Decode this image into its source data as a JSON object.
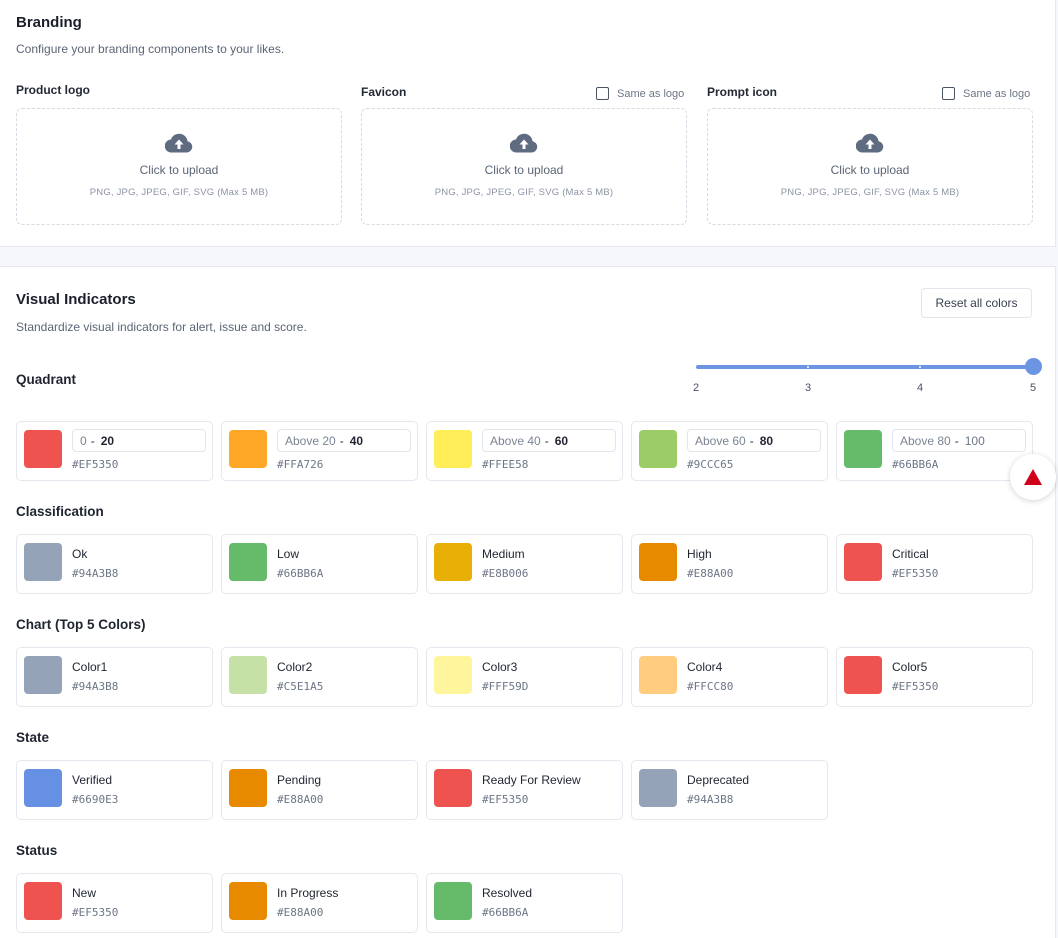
{
  "branding": {
    "title": "Branding",
    "subtitle": "Configure your branding components to your likes.",
    "uploaders": [
      {
        "label": "Product logo",
        "same_as_logo": null,
        "cta": "Click to upload",
        "hint": "PNG, JPG, JPEG, GIF, SVG (Max 5 MB)"
      },
      {
        "label": "Favicon",
        "same_as_logo": "Same as logo",
        "cta": "Click to upload",
        "hint": "PNG, JPG, JPEG, GIF, SVG (Max 5 MB)"
      },
      {
        "label": "Prompt icon",
        "same_as_logo": "Same as logo",
        "cta": "Click to upload",
        "hint": "PNG, JPG, JPEG, GIF, SVG (Max 5 MB)"
      }
    ]
  },
  "visual": {
    "title": "Visual Indicators",
    "subtitle": "Standardize visual indicators for alert, issue and score.",
    "reset_label": "Reset all colors",
    "quadrant": {
      "title": "Quadrant",
      "slider": {
        "ticks": [
          "2",
          "3",
          "4",
          "5"
        ],
        "value": "5"
      },
      "items": [
        {
          "from": "0",
          "to": "20",
          "hex": "#EF5350",
          "color": "#EF5350"
        },
        {
          "from": "Above 20",
          "to": "40",
          "hex": "#FFA726",
          "color": "#FFA726"
        },
        {
          "from": "Above 40",
          "to": "60",
          "hex": "#FFEE58",
          "color": "#FFEE58"
        },
        {
          "from": "Above 60",
          "to": "80",
          "hex": "#9CCC65",
          "color": "#9CCC65"
        },
        {
          "from": "Above 80",
          "to": "100",
          "hex": "#66BB6A",
          "color": "#66BB6A"
        }
      ]
    },
    "classification": {
      "title": "Classification",
      "items": [
        {
          "name": "Ok",
          "hex": "#94A3B8",
          "color": "#94A3B8"
        },
        {
          "name": "Low",
          "hex": "#66BB6A",
          "color": "#66BB6A"
        },
        {
          "name": "Medium",
          "hex": "#E8B006",
          "color": "#E8B006"
        },
        {
          "name": "High",
          "hex": "#E88A00",
          "color": "#E88A00"
        },
        {
          "name": "Critical",
          "hex": "#EF5350",
          "color": "#EF5350"
        }
      ]
    },
    "chart": {
      "title": "Chart (Top 5 Colors)",
      "items": [
        {
          "name": "Color1",
          "hex": "#94A3B8",
          "color": "#94A3B8"
        },
        {
          "name": "Color2",
          "hex": "#C5E1A5",
          "color": "#C5E1A5"
        },
        {
          "name": "Color3",
          "hex": "#FFF59D",
          "color": "#FFF59D"
        },
        {
          "name": "Color4",
          "hex": "#FFCC80",
          "color": "#FFCC80"
        },
        {
          "name": "Color5",
          "hex": "#EF5350",
          "color": "#EF5350"
        }
      ]
    },
    "state": {
      "title": "State",
      "items": [
        {
          "name": "Verified",
          "hex": "#6690E3",
          "color": "#6690E3"
        },
        {
          "name": "Pending",
          "hex": "#E88A00",
          "color": "#E88A00"
        },
        {
          "name": "Ready For Review",
          "hex": "#EF5350",
          "color": "#EF5350"
        },
        {
          "name": "Deprecated",
          "hex": "#94A3B8",
          "color": "#94A3B8"
        }
      ]
    },
    "status": {
      "title": "Status",
      "items": [
        {
          "name": "New",
          "hex": "#EF5350",
          "color": "#EF5350"
        },
        {
          "name": "In Progress",
          "hex": "#E88A00",
          "color": "#E88A00"
        },
        {
          "name": "Resolved",
          "hex": "#66BB6A",
          "color": "#66BB6A"
        }
      ]
    }
  },
  "fab_icon": "warning-triangle-icon",
  "accent_color": "#6B95E3"
}
